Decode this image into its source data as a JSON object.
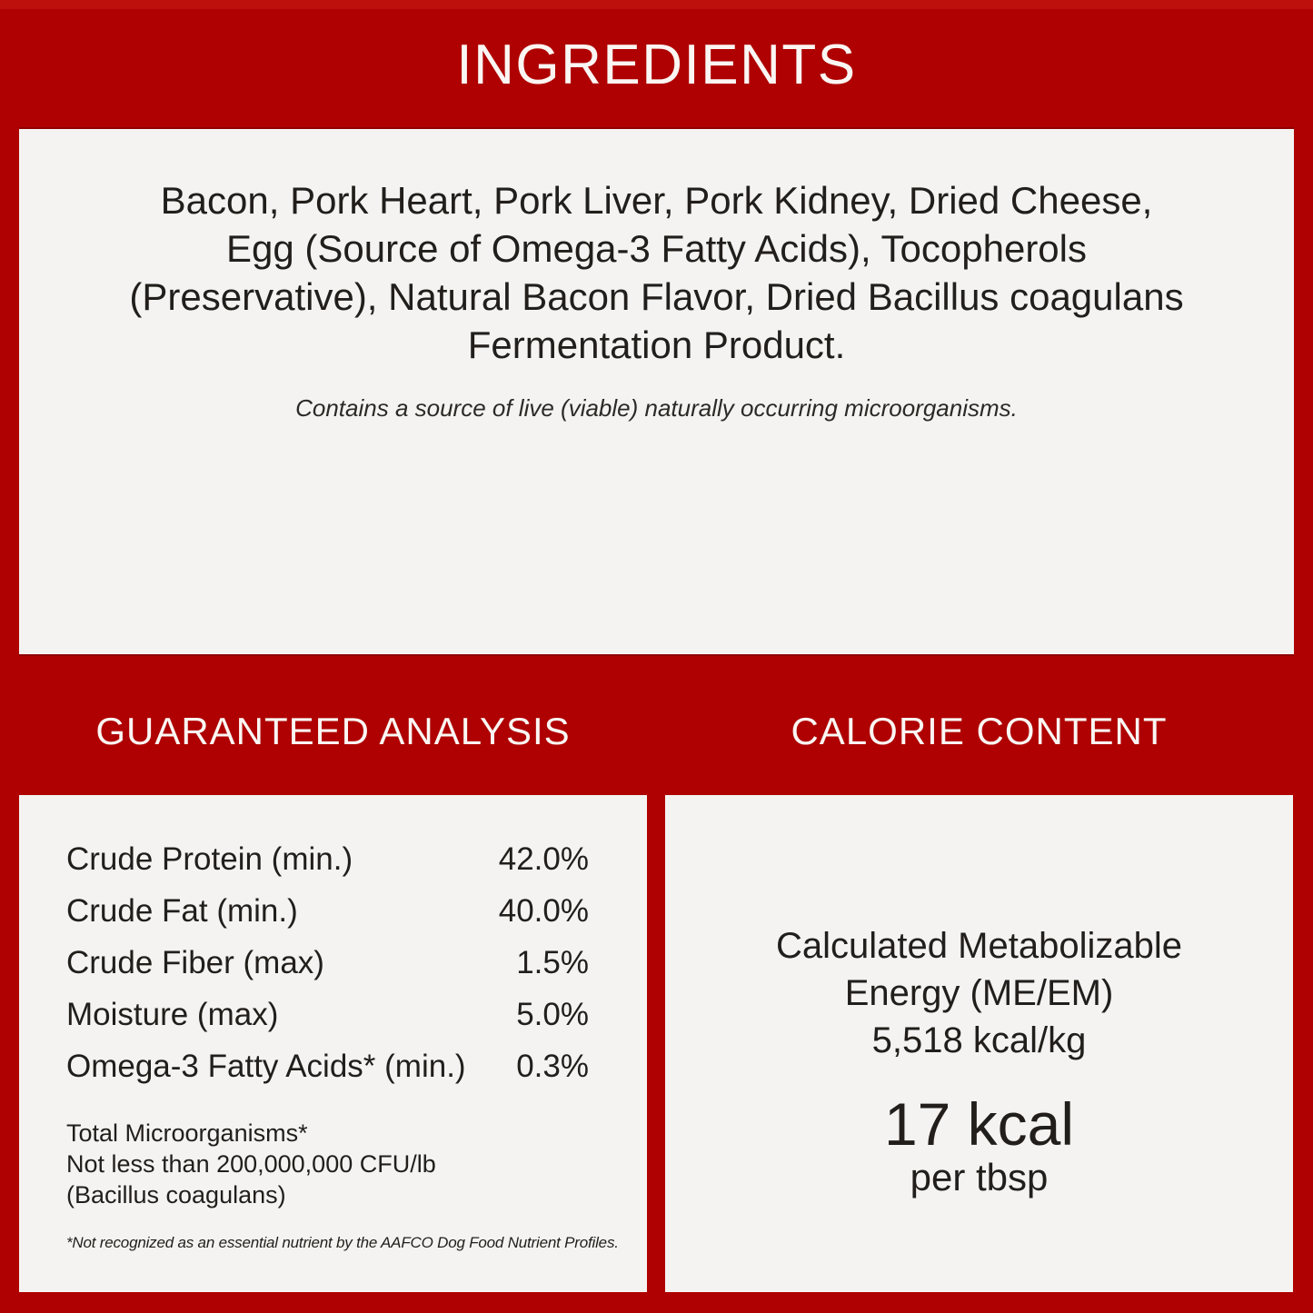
{
  "colors": {
    "background_red": "#AF0101",
    "panel_background": "#F5F3F1",
    "heading_text": "#FAF6F3",
    "body_text": "#211E1B"
  },
  "ingredients": {
    "title": "INGREDIENTS",
    "body_lines": [
      "Bacon, Pork Heart, Pork Liver, Pork Kidney, Dried Cheese,",
      "Egg (Source of Omega-3 Fatty Acids), Tocopherols",
      "(Preservative), Natural Bacon Flavor, Dried Bacillus coagulans",
      "Fermentation Product."
    ],
    "note": "Contains a source of live (viable) naturally occurring microorganisms."
  },
  "guaranteed_analysis": {
    "title": "GUARANTEED ANALYSIS",
    "rows": [
      {
        "label": "Crude Protein (min.)",
        "value": "42.0%"
      },
      {
        "label": "Crude Fat (min.)",
        "value": "40.0%"
      },
      {
        "label": "Crude Fiber (max)",
        "value": "1.5%"
      },
      {
        "label": "Moisture (max)",
        "value": "5.0%"
      },
      {
        "label": "Omega-3 Fatty Acids* (min.)",
        "value": "0.3%"
      }
    ],
    "microorganisms_lines": [
      "Total Microorganisms*",
      "Not less than 200,000,000 CFU/lb",
      "(Bacillus coagulans)"
    ],
    "footnote": "*Not recognized as an essential nutrient by the AAFCO Dog Food Nutrient Profiles."
  },
  "calorie_content": {
    "title": "CALORIE CONTENT",
    "lines": [
      "Calculated Metabolizable",
      "Energy (ME/EM)",
      "5,518 kcal/kg"
    ],
    "big_value": "17 kcal",
    "big_unit": "per tbsp"
  }
}
